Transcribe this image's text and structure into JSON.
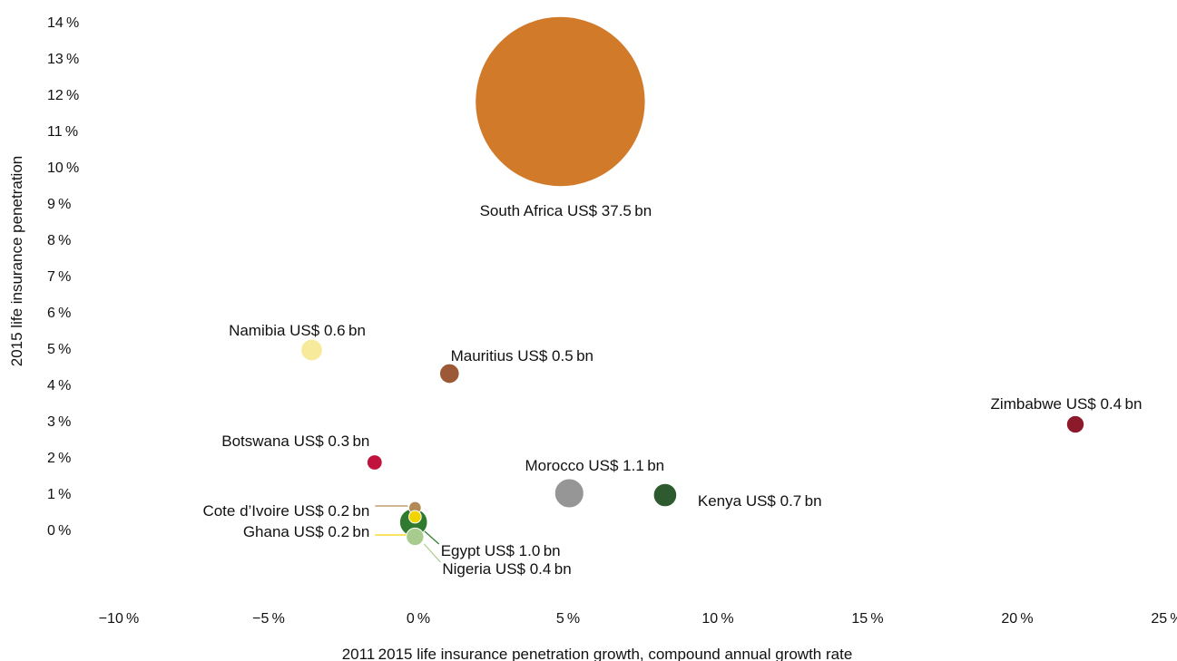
{
  "chart_data": {
    "type": "scatter",
    "title": "",
    "xlabel": "2011 2015 life insurance penetration growth, compound annual growth rate",
    "ylabel": "2015 life insurance penetration",
    "xlim": [
      -10,
      25
    ],
    "ylim": [
      0,
      14
    ],
    "x_ticks": [
      "−10 %",
      "−5 %",
      "0 %",
      "5 %",
      "10 %",
      "15 %",
      "20 %",
      "25 %"
    ],
    "y_ticks": [
      "0 %",
      "1 %",
      "2 %",
      "3 %",
      "4 %",
      "5 %",
      "6 %",
      "7 %",
      "8 %",
      "9 %",
      "10 %",
      "11 %",
      "12 %",
      "13 %",
      "14 %"
    ],
    "grid": false,
    "legend": "none",
    "bubble_size_unit": "premium volume (US$ bn)",
    "points": [
      {
        "country": "South Africa",
        "label": "South Africa US$ 37.5 bn",
        "x": 4.8,
        "y": 11.8,
        "size": 37.5,
        "color": "#D17A29"
      },
      {
        "country": "Namibia",
        "label": "Namibia US$ 0.6 bn",
        "x": -3.5,
        "y": 4.95,
        "size": 0.6,
        "color": "#F7EA9A"
      },
      {
        "country": "Mauritius",
        "label": "Mauritius US$ 0.5 bn",
        "x": 1.1,
        "y": 4.3,
        "size": 0.5,
        "color": "#9B5A35"
      },
      {
        "country": "Zimbabwe",
        "label": "Zimbabwe US$ 0.4 bn",
        "x": 22.0,
        "y": 2.9,
        "size": 0.4,
        "color": "#8C1A2B"
      },
      {
        "country": "Botswana",
        "label": "Botswana US$ 0.3 bn",
        "x": -1.4,
        "y": 1.85,
        "size": 0.3,
        "color": "#C0123C"
      },
      {
        "country": "Morocco",
        "label": "Morocco US$ 1.1 bn",
        "x": 5.1,
        "y": 1.0,
        "size": 1.1,
        "color": "#969696"
      },
      {
        "country": "Kenya",
        "label": "Kenya US$ 0.7 bn",
        "x": 8.3,
        "y": 0.95,
        "size": 0.7,
        "color": "#2D5A2E"
      },
      {
        "country": "Egypt",
        "label": "Egypt US$ 1.0 bn",
        "x": -0.1,
        "y": 0.2,
        "size": 1.0,
        "color": "#2F7A2F"
      },
      {
        "country": "Cote d’Ivoire",
        "label": "Cote d’Ivoire US$ 0.2 bn",
        "x": -0.05,
        "y": 0.6,
        "size": 0.2,
        "color": "#B38A55"
      },
      {
        "country": "Ghana",
        "label": "Ghana US$ 0.2 bn",
        "x": -0.05,
        "y": 0.35,
        "size": 0.2,
        "color": "#F2D400"
      },
      {
        "country": "Nigeria",
        "label": "Nigeria US$ 0.4 bn",
        "x": -0.05,
        "y": -0.2,
        "size": 0.4,
        "color": "#A8CC8E"
      }
    ]
  }
}
